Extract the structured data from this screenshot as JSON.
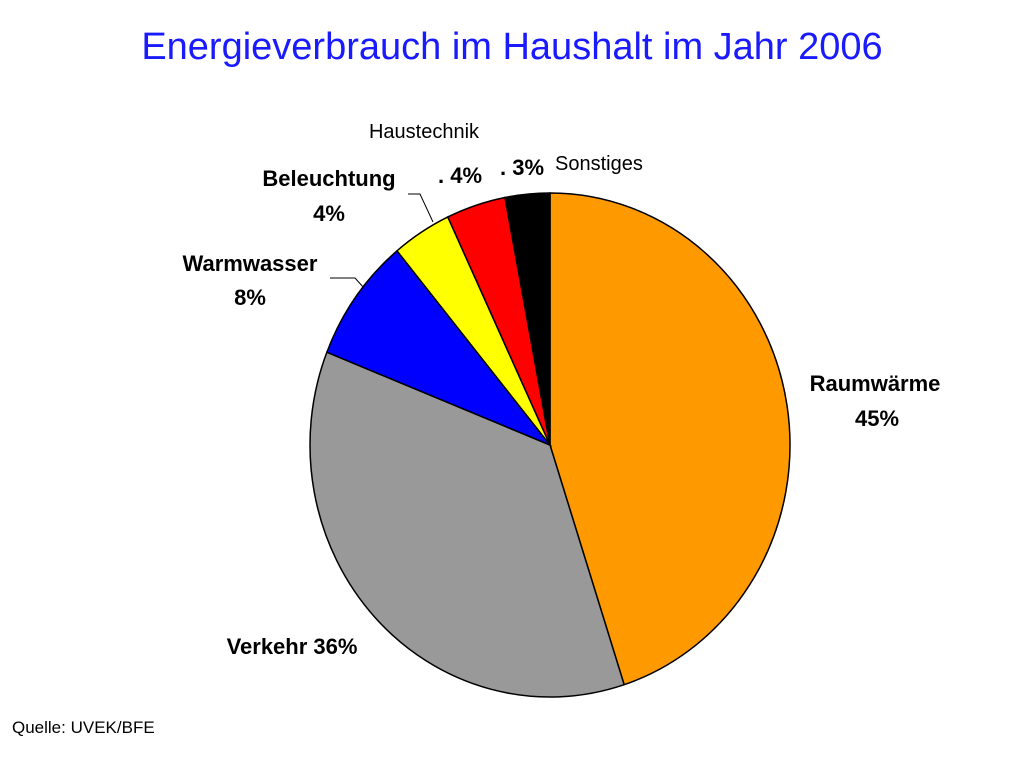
{
  "title": "Energieverbrauch im Haushalt im Jahr 2006",
  "source": "Quelle: UVEK/BFE",
  "chart_data": {
    "type": "pie",
    "title": "Energieverbrauch im Haushalt im Jahr 2006",
    "start_angle_deg": 0,
    "direction": "clockwise",
    "slices": [
      {
        "name": "Raumwärme",
        "value": 45,
        "color": "#ff9900",
        "label_name": "Raumwärme",
        "label_pct": "45%"
      },
      {
        "name": "Verkehr",
        "value": 36,
        "color": "#999999",
        "label_name": "Verkehr 36%",
        "label_pct": ""
      },
      {
        "name": "Warmwasser",
        "value": 8,
        "color": "#0000ff",
        "label_name": "Warmwasser",
        "label_pct": "8%"
      },
      {
        "name": "Beleuchtung",
        "value": 4,
        "color": "#ffff00",
        "label_name": "Beleuchtung",
        "label_pct": "4%"
      },
      {
        "name": "Haustechnik",
        "value": 4,
        "color": "#ff0000",
        "label_name": "Haustechnik",
        "label_pct": ". 4%"
      },
      {
        "name": "Sonstiges",
        "value": 3,
        "color": "#000000",
        "label_name": "Sonstiges",
        "label_pct": ". 3%"
      }
    ]
  }
}
